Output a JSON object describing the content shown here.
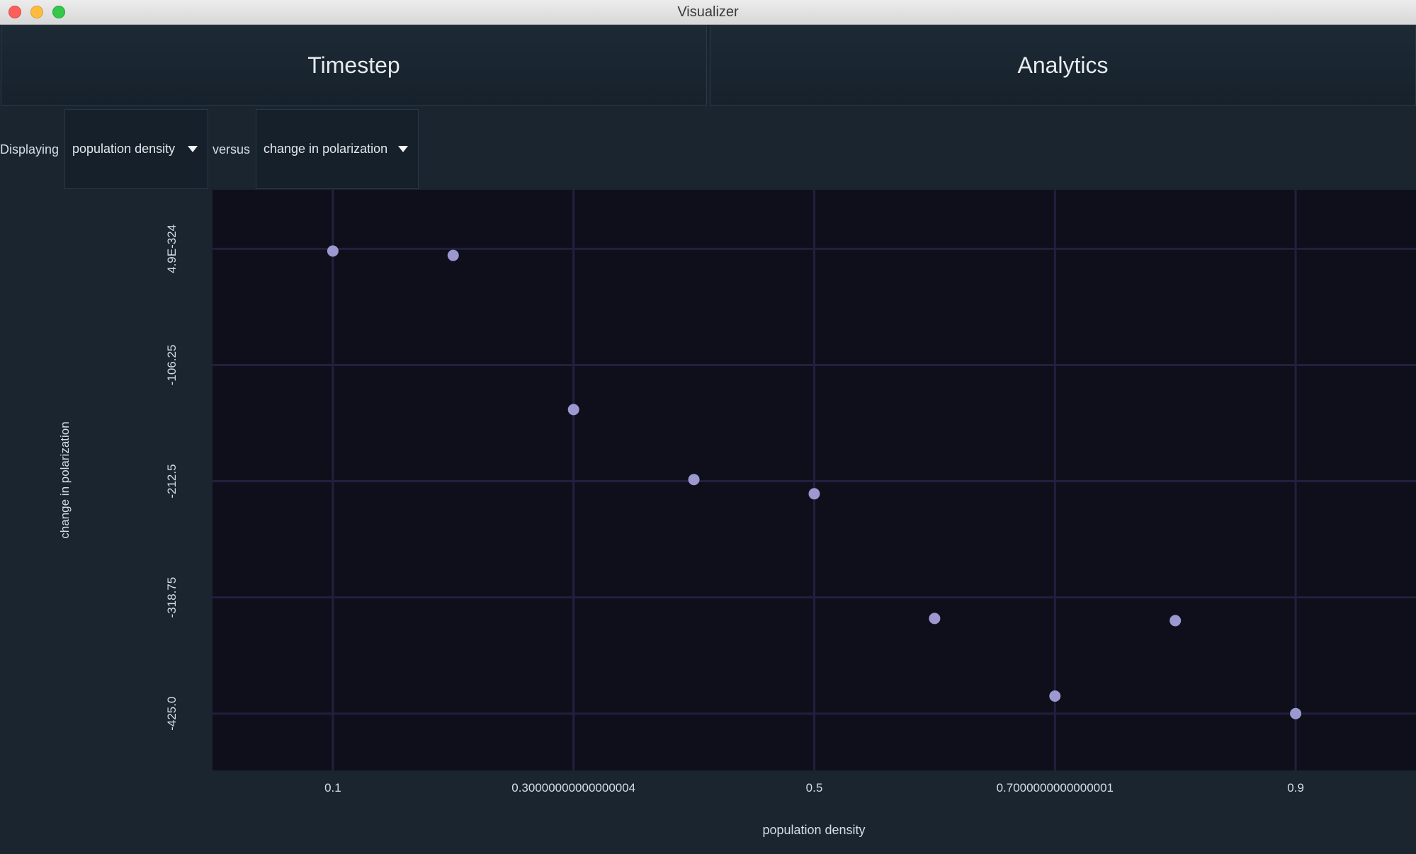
{
  "window": {
    "title": "Visualizer"
  },
  "tabs": [
    {
      "label": "Timestep"
    },
    {
      "label": "Analytics"
    }
  ],
  "controls": {
    "displaying_label": "Displaying",
    "x_select": "population density",
    "versus_label": "versus",
    "y_select": "change in polarization"
  },
  "colors": {
    "background": "#1a2530",
    "plot_background": "#0e0f1a",
    "grid": "#221f3f",
    "point": "#9c98d0"
  },
  "chart_data": {
    "type": "scatter",
    "xlabel": "population density",
    "ylabel": "change in polarization",
    "x_ticks": [
      {
        "value": 0.1,
        "label": "0.1"
      },
      {
        "value": 0.3,
        "label": "0.30000000000000004"
      },
      {
        "value": 0.5,
        "label": "0.5"
      },
      {
        "value": 0.7,
        "label": "0.7000000000000001"
      },
      {
        "value": 0.9,
        "label": "0.9"
      }
    ],
    "y_ticks": [
      {
        "value": 0,
        "label": "4.9E-324"
      },
      {
        "value": -106.25,
        "label": "-106.25"
      },
      {
        "value": -212.5,
        "label": "-212.5"
      },
      {
        "value": -318.75,
        "label": "-318.75"
      },
      {
        "value": -425.0,
        "label": "-425.0"
      }
    ],
    "xlim": [
      0.0,
      1.0
    ],
    "ylim": [
      -477.0,
      54.0
    ],
    "grid": true,
    "points": [
      {
        "x": 0.1,
        "y": -2
      },
      {
        "x": 0.2,
        "y": -6
      },
      {
        "x": 0.3,
        "y": -147
      },
      {
        "x": 0.4,
        "y": -211
      },
      {
        "x": 0.5,
        "y": -224
      },
      {
        "x": 0.6,
        "y": -338
      },
      {
        "x": 0.7,
        "y": -409
      },
      {
        "x": 0.8,
        "y": -340
      },
      {
        "x": 0.9,
        "y": -425
      }
    ]
  }
}
